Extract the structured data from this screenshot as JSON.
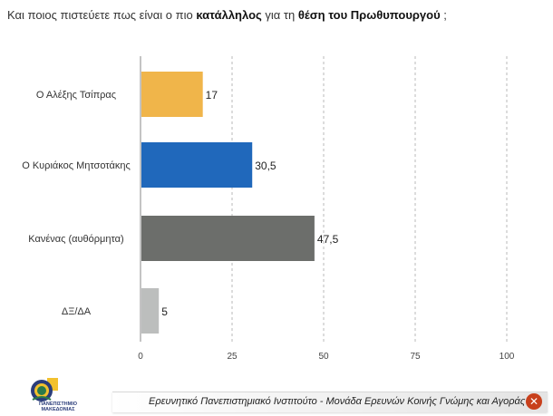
{
  "title": {
    "prefix": "Και ποιος πιστεύετε πως είναι ο πιο ",
    "bold1": "κατάλληλος",
    "middle": " για τη ",
    "bold2": "θέση του Πρωθυπουργού",
    "suffix": " ;"
  },
  "chart_data": {
    "type": "bar",
    "orientation": "horizontal",
    "title": "Και ποιος πιστεύετε πως είναι ο πιο κατάλληλος για τη θέση του Πρωθυπουργού ;",
    "categories": [
      "Ο Αλέξης Τσίπρας",
      "Ο Κυριάκος Μητσοτάκης",
      "Κανένας (αυθόρμητα)",
      "ΔΞ/ΔΑ"
    ],
    "values": [
      17,
      30.5,
      47.5,
      5
    ],
    "value_labels": [
      "17",
      "30,5",
      "47,5",
      "5"
    ],
    "colors": [
      "#f0b54a",
      "#2068bb",
      "#6c6e6b",
      "#bcbebd"
    ],
    "xlim": [
      0,
      100
    ],
    "xticks": [
      0,
      25,
      50,
      75,
      100
    ],
    "xlabel": "",
    "ylabel": "",
    "grid": "vertical dashed"
  },
  "footer": {
    "source": "Ερευνητικό Πανεπιστημιακό Ινστιτούτο - Μονάδα Ερευνών Κοινής Γνώμης και Αγοράς",
    "close_glyph": "✕"
  },
  "logo": {
    "line1": "ΠΑΝΕΠΙΣΤΗΜΙΟ",
    "line2": "ΜΑΚΕΔΟΝΙΑΣ"
  }
}
